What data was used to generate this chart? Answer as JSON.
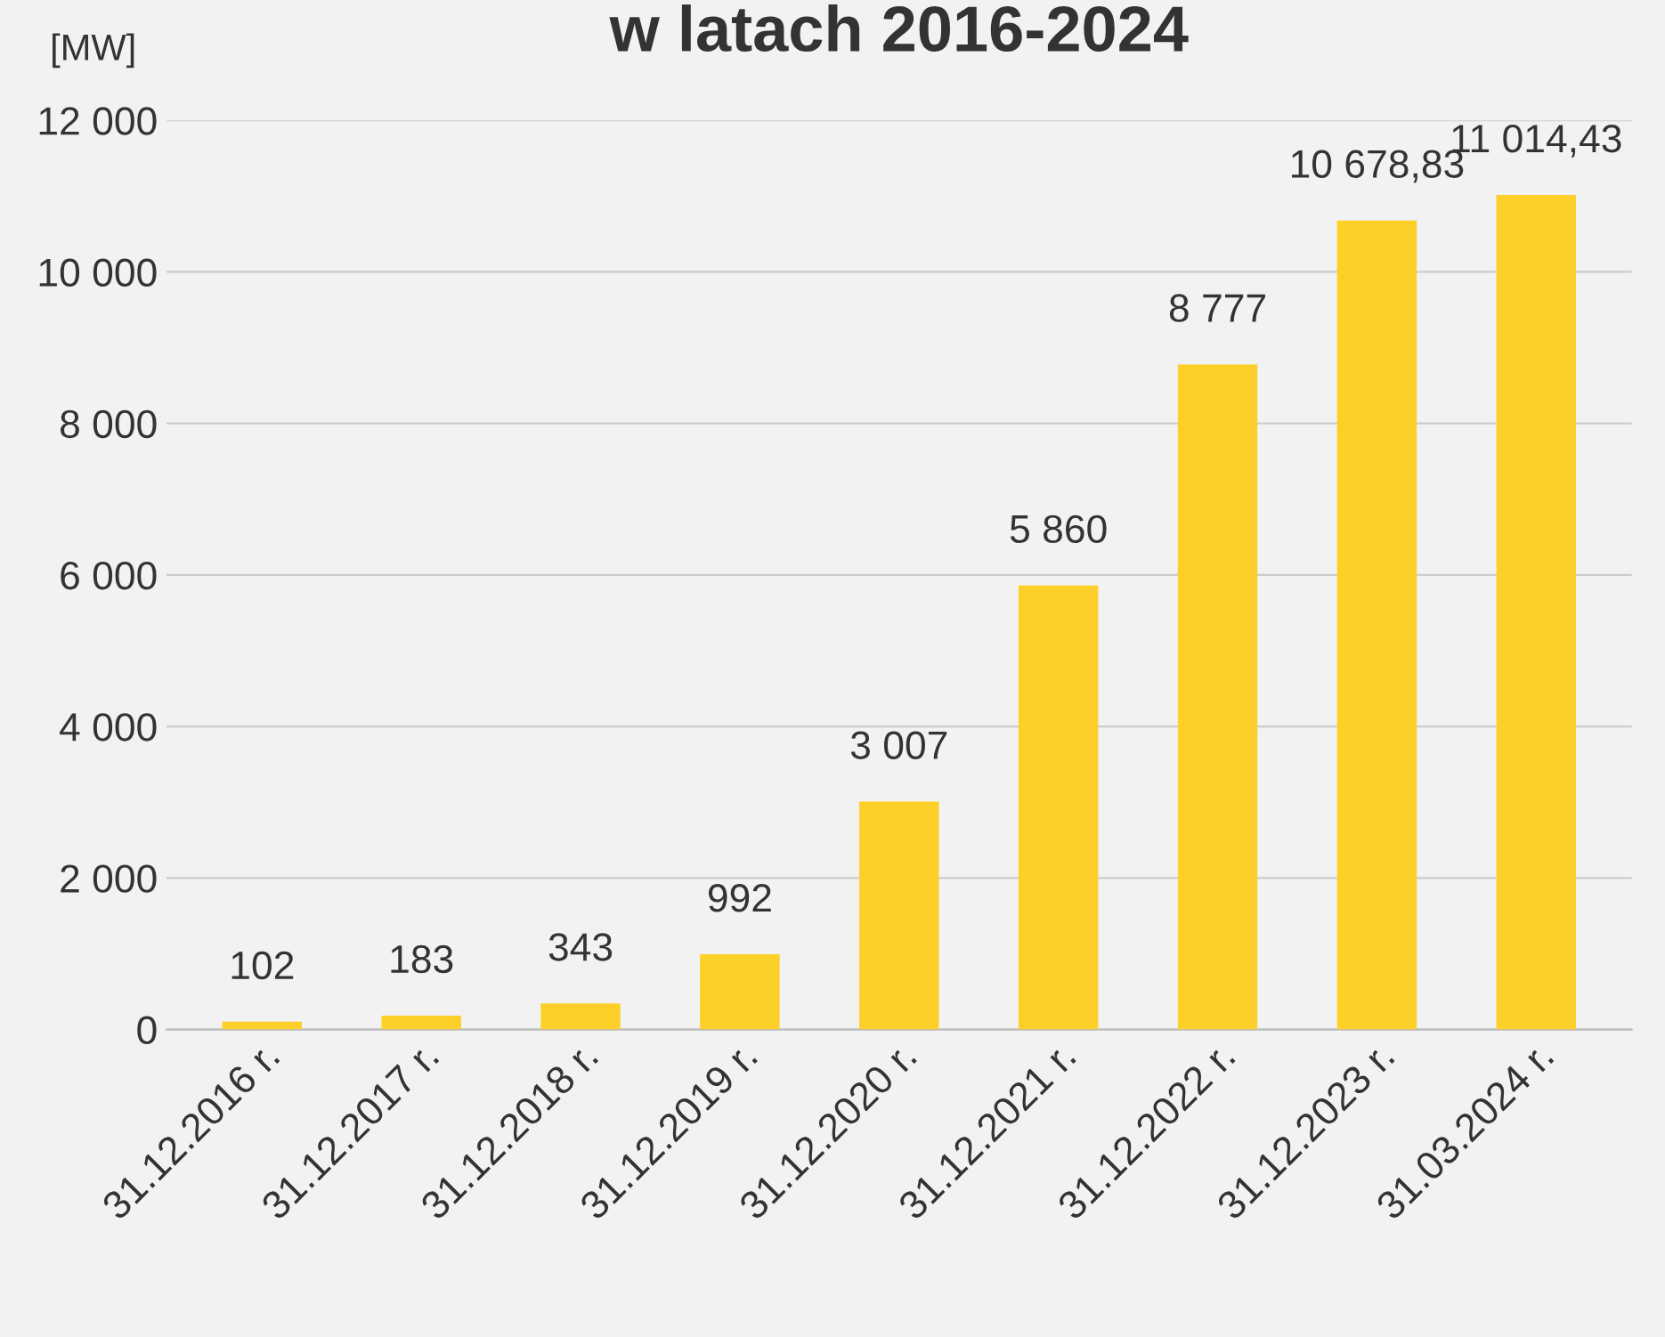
{
  "chart_data": {
    "type": "bar",
    "title": "w latach 2016-2024",
    "ylabel": "[MW]",
    "categories": [
      "31.12.2016 r.",
      "31.12.2017 r.",
      "31.12.2018 r.",
      "31.12.2019 r.",
      "31.12.2020 r.",
      "31.12.2021 r.",
      "31.12.2022 r.",
      "31.12.2023 r.",
      "31.03.2024 r."
    ],
    "values": [
      102,
      183,
      343,
      992,
      3007,
      5860,
      8777,
      10678.83,
      11014.43
    ],
    "value_labels": [
      "102",
      "183",
      "343",
      "992",
      "3 007",
      "5 860",
      "8 777",
      "10 678,83",
      "11 014,43"
    ],
    "color": "#fcd028",
    "ylim": [
      0,
      12000
    ],
    "yticks": [
      {
        "value": 0,
        "label": "0"
      },
      {
        "value": 2000,
        "label": "2 000"
      },
      {
        "value": 4000,
        "label": "4 000"
      },
      {
        "value": 6000,
        "label": "6 000"
      },
      {
        "value": 8000,
        "label": "8 000"
      },
      {
        "value": 10000,
        "label": "10 000"
      },
      {
        "value": 12000,
        "label": "12 000"
      }
    ],
    "grid": "y"
  }
}
